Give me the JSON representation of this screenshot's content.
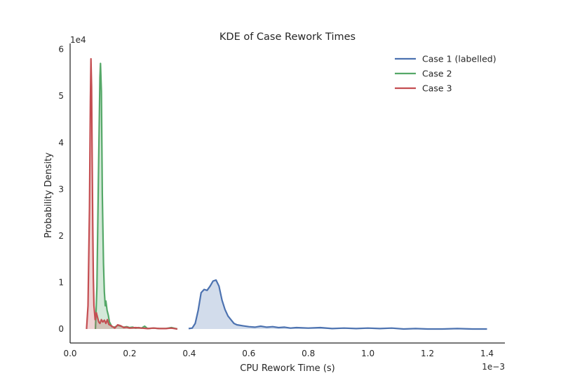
{
  "chart_data": {
    "type": "area",
    "title": "KDE of Case Rework Times",
    "xlabel": "CPU Rework Time (s)",
    "ylabel": "Probability Density",
    "x_scale_label": "1e−3",
    "y_scale_label": "1e4",
    "x_multiplier": 0.001,
    "y_multiplier": 10000,
    "xlim": [
      0.0,
      1.46
    ],
    "ylim": [
      -0.3,
      6.1
    ],
    "xticks": [
      0.0,
      0.2,
      0.4,
      0.6,
      0.8,
      1.0,
      1.2,
      1.4
    ],
    "xtick_labels": [
      "0.0",
      "0.2",
      "0.4",
      "0.6",
      "0.8",
      "1.0",
      "1.2",
      "1.4"
    ],
    "yticks": [
      0,
      1,
      2,
      3,
      4,
      5,
      6
    ],
    "ytick_labels": [
      "0",
      "1",
      "2",
      "3",
      "4",
      "5",
      "6"
    ],
    "grid": false,
    "legend_position": "top-right",
    "series": [
      {
        "name": "Case 1 (labelled)",
        "color": "#4c72b0",
        "fill": true,
        "x": [
          0.398,
          0.41,
          0.42,
          0.43,
          0.44,
          0.45,
          0.46,
          0.47,
          0.48,
          0.49,
          0.5,
          0.51,
          0.52,
          0.53,
          0.54,
          0.55,
          0.56,
          0.58,
          0.6,
          0.62,
          0.64,
          0.66,
          0.68,
          0.7,
          0.72,
          0.74,
          0.76,
          0.8,
          0.84,
          0.88,
          0.92,
          0.96,
          1.0,
          1.04,
          1.08,
          1.12,
          1.16,
          1.2,
          1.25,
          1.3,
          1.35,
          1.4
        ],
        "y": [
          0.01,
          0.02,
          0.12,
          0.4,
          0.78,
          0.85,
          0.83,
          0.92,
          1.03,
          1.05,
          0.92,
          0.62,
          0.42,
          0.28,
          0.2,
          0.12,
          0.09,
          0.07,
          0.05,
          0.04,
          0.06,
          0.04,
          0.05,
          0.03,
          0.04,
          0.02,
          0.03,
          0.02,
          0.03,
          0.01,
          0.02,
          0.01,
          0.02,
          0.01,
          0.02,
          0.0,
          0.01,
          0.0,
          0.0,
          0.01,
          0.0,
          0.0
        ]
      },
      {
        "name": "Case 2",
        "color": "#55a868",
        "fill": true,
        "x": [
          0.085,
          0.09,
          0.095,
          0.1,
          0.102,
          0.105,
          0.108,
          0.112,
          0.115,
          0.118,
          0.12,
          0.124,
          0.128,
          0.132,
          0.136,
          0.14,
          0.15,
          0.16,
          0.17,
          0.18,
          0.19,
          0.2,
          0.21,
          0.22,
          0.23,
          0.24,
          0.25,
          0.26,
          0.28,
          0.3,
          0.32,
          0.34,
          0.36
        ],
        "y": [
          0.0,
          0.9,
          3.2,
          5.4,
          5.7,
          5.1,
          2.9,
          1.4,
          0.8,
          0.5,
          0.6,
          0.4,
          0.3,
          0.15,
          0.1,
          0.05,
          0.04,
          0.08,
          0.06,
          0.04,
          0.05,
          0.03,
          0.04,
          0.02,
          0.03,
          0.02,
          0.06,
          0.01,
          0.02,
          0.01,
          0.01,
          0.03,
          0.0
        ]
      },
      {
        "name": "Case 3",
        "color": "#c44e52",
        "fill": true,
        "x": [
          0.055,
          0.06,
          0.065,
          0.068,
          0.07,
          0.072,
          0.074,
          0.076,
          0.078,
          0.08,
          0.084,
          0.088,
          0.092,
          0.096,
          0.1,
          0.105,
          0.11,
          0.115,
          0.12,
          0.125,
          0.13,
          0.135,
          0.14,
          0.15,
          0.16,
          0.17,
          0.18,
          0.19,
          0.2,
          0.22,
          0.24,
          0.26,
          0.28,
          0.3,
          0.32,
          0.34,
          0.36
        ],
        "y": [
          0.0,
          0.5,
          2.6,
          4.9,
          5.8,
          5.2,
          3.7,
          2.2,
          1.1,
          0.5,
          0.2,
          0.35,
          0.25,
          0.15,
          0.12,
          0.2,
          0.15,
          0.19,
          0.12,
          0.2,
          0.1,
          0.08,
          0.06,
          0.02,
          0.09,
          0.07,
          0.03,
          0.04,
          0.02,
          0.03,
          0.02,
          0.01,
          0.02,
          0.01,
          0.01,
          0.02,
          0.0
        ]
      }
    ]
  }
}
